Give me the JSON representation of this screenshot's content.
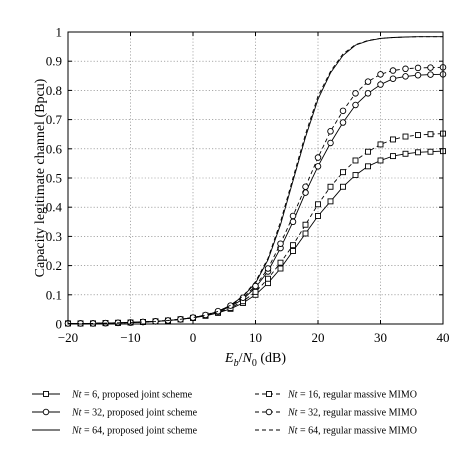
{
  "chart_data": {
    "type": "line",
    "xlabel": {
      "main": "E",
      "sub1": "b",
      "slash": "/",
      "main2": "N",
      "sub2": "0",
      "unit": " (dB)"
    },
    "ylabel": "Capacity legitimate channel (Bpcu)",
    "xlim": [
      -20,
      40
    ],
    "ylim": [
      0,
      1
    ],
    "grid": true,
    "x_ticks": [
      -20,
      -10,
      0,
      10,
      20,
      30,
      40
    ],
    "x_tick_labels": [
      "−20",
      "−10",
      "0",
      "10",
      "20",
      "30",
      "40"
    ],
    "y_ticks": [
      0,
      0.1,
      0.2,
      0.3,
      0.4,
      0.5,
      0.6,
      0.7,
      0.8,
      0.9,
      1
    ],
    "y_tick_labels": [
      "0",
      "0.1",
      "0.2",
      "0.3",
      "0.4",
      "0.5",
      "0.6",
      "0.7",
      "0.8",
      "0.9",
      "1"
    ],
    "x": [
      -20,
      -18,
      -16,
      -14,
      -12,
      -10,
      -8,
      -6,
      -4,
      -2,
      0,
      2,
      4,
      6,
      8,
      10,
      12,
      14,
      16,
      18,
      20,
      22,
      24,
      26,
      28,
      30,
      32,
      34,
      36,
      38,
      40
    ],
    "legend_placement": "below",
    "series": [
      {
        "name_var": "Nt",
        "name_text": " = 6, proposed joint scheme",
        "style": "solid",
        "marker": "square",
        "values": [
          0.002,
          0.002,
          0.002,
          0.003,
          0.004,
          0.005,
          0.007,
          0.009,
          0.012,
          0.016,
          0.021,
          0.028,
          0.038,
          0.052,
          0.072,
          0.1,
          0.14,
          0.19,
          0.25,
          0.31,
          0.37,
          0.42,
          0.47,
          0.51,
          0.54,
          0.56,
          0.575,
          0.583,
          0.588,
          0.59,
          0.592
        ]
      },
      {
        "name_var": "Nt",
        "name_text": " = 32, proposed joint scheme",
        "style": "solid",
        "marker": "circle",
        "values": [
          0.002,
          0.002,
          0.002,
          0.003,
          0.004,
          0.005,
          0.007,
          0.009,
          0.012,
          0.016,
          0.022,
          0.03,
          0.042,
          0.06,
          0.085,
          0.125,
          0.18,
          0.26,
          0.35,
          0.45,
          0.54,
          0.62,
          0.69,
          0.75,
          0.79,
          0.82,
          0.84,
          0.848,
          0.852,
          0.854,
          0.855
        ]
      },
      {
        "name_var": "Nt",
        "name_text": " = 64, proposed joint scheme",
        "style": "solid",
        "marker": "none",
        "values": [
          0.002,
          0.002,
          0.002,
          0.003,
          0.004,
          0.005,
          0.007,
          0.009,
          0.012,
          0.016,
          0.022,
          0.03,
          0.043,
          0.064,
          0.095,
          0.14,
          0.22,
          0.34,
          0.49,
          0.64,
          0.77,
          0.86,
          0.92,
          0.955,
          0.97,
          0.978,
          0.981,
          0.983,
          0.984,
          0.984,
          0.984
        ]
      },
      {
        "name_var": "Nt",
        "name_text": " = 16, regular massive MIMO",
        "style": "dashed",
        "marker": "square",
        "values": [
          0.002,
          0.002,
          0.002,
          0.003,
          0.004,
          0.005,
          0.007,
          0.009,
          0.012,
          0.016,
          0.021,
          0.029,
          0.04,
          0.055,
          0.078,
          0.11,
          0.155,
          0.21,
          0.27,
          0.34,
          0.41,
          0.47,
          0.52,
          0.56,
          0.59,
          0.615,
          0.632,
          0.642,
          0.647,
          0.65,
          0.652
        ]
      },
      {
        "name_var": "Nt",
        "name_text": " = 32, regular massive MIMO",
        "style": "dashed",
        "marker": "circle",
        "values": [
          0.002,
          0.002,
          0.002,
          0.003,
          0.004,
          0.005,
          0.007,
          0.009,
          0.012,
          0.016,
          0.022,
          0.031,
          0.044,
          0.063,
          0.09,
          0.13,
          0.19,
          0.275,
          0.37,
          0.47,
          0.57,
          0.66,
          0.73,
          0.79,
          0.83,
          0.855,
          0.868,
          0.874,
          0.877,
          0.878,
          0.879
        ]
      },
      {
        "name_var": "Nt",
        "name_text": " = 64, regular massive MIMO",
        "style": "dashed",
        "marker": "none",
        "values": [
          0.002,
          0.002,
          0.002,
          0.003,
          0.004,
          0.005,
          0.007,
          0.009,
          0.012,
          0.016,
          0.022,
          0.03,
          0.043,
          0.064,
          0.096,
          0.145,
          0.225,
          0.35,
          0.5,
          0.65,
          0.78,
          0.865,
          0.925,
          0.957,
          0.971,
          0.978,
          0.981,
          0.983,
          0.984,
          0.984,
          0.984
        ]
      }
    ]
  }
}
